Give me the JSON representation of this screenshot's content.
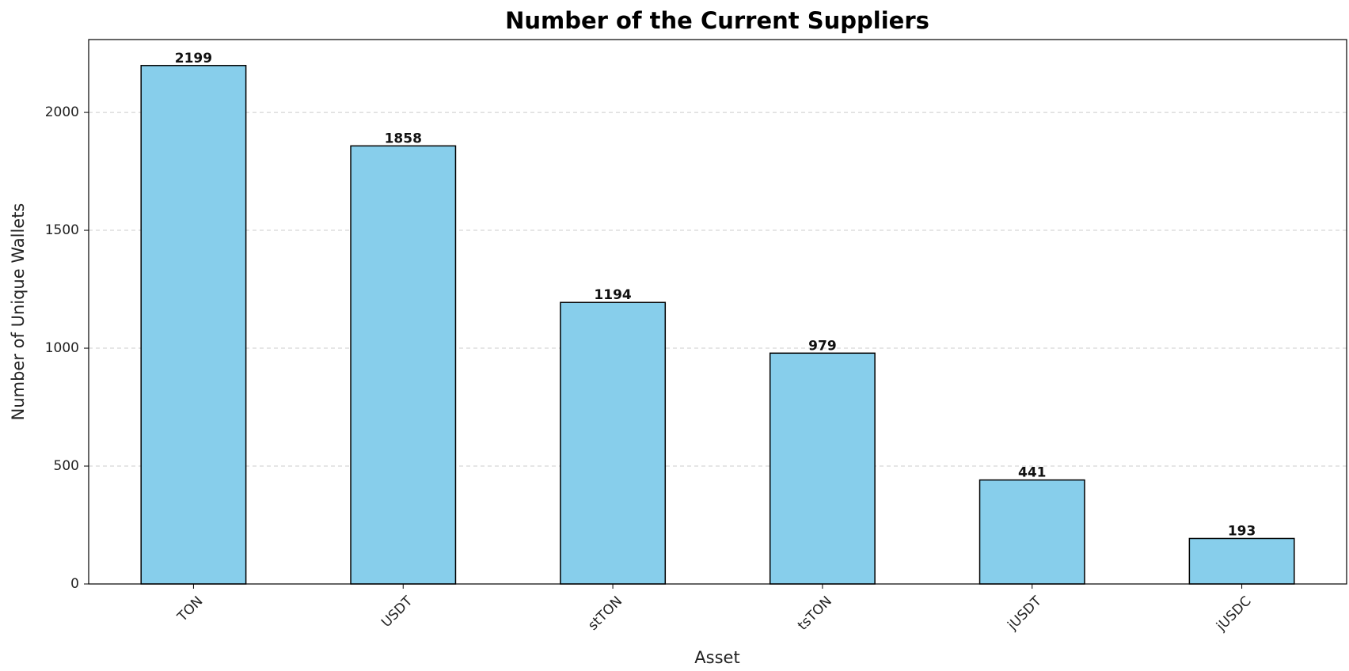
{
  "chart_data": {
    "type": "bar",
    "title": "Number of the Current Suppliers",
    "x_label": "Asset",
    "y_label": "Number of Unique Wallets",
    "categories": [
      "TON",
      "USDT",
      "stTON",
      "tsTON",
      "jUSDT",
      "jUSDC"
    ],
    "values": [
      2199,
      1858,
      1194,
      979,
      441,
      193
    ],
    "color": "#87ceeb",
    "ylim": [
      0,
      2309
    ],
    "yticks": [
      0,
      500,
      1000,
      1500,
      2000
    ],
    "grid": true
  }
}
